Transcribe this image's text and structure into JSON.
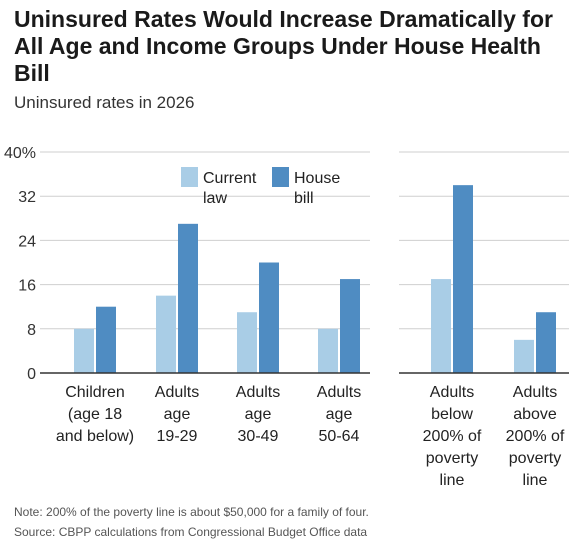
{
  "title": "Uninsured Rates Would Increase Dramatically for All Age and Income Groups Under House Health Bill",
  "subtitle": "Uninsured rates in 2026",
  "note": "Note: 200% of the poverty line is about $50,000 for a family of four.",
  "source": "Source: CBPP calculations from Congressional Budget Office data",
  "colors": {
    "current": "#a9cde6",
    "house": "#4f8cc2",
    "grid": "#cfcfcf",
    "axis": "#333333"
  },
  "chart_data": [
    {
      "type": "bar",
      "title": "",
      "ylim": [
        0,
        40
      ],
      "yticks": [
        "0",
        "8",
        "16",
        "24",
        "32",
        "40%"
      ],
      "legend": [
        {
          "label_lines": [
            "Current",
            "law"
          ]
        },
        {
          "label_lines": [
            "House",
            "bill"
          ]
        }
      ],
      "category_lines": [
        [
          "Children",
          "(age 18",
          "and below)"
        ],
        [
          "Adults",
          "age",
          "19-29"
        ],
        [
          "Adults",
          "age",
          "30-49"
        ],
        [
          "Adults",
          "age",
          "50-64"
        ]
      ],
      "series": [
        {
          "name": "Current law",
          "values": [
            8,
            14,
            11,
            8
          ]
        },
        {
          "name": "House bill",
          "values": [
            12,
            27,
            20,
            17
          ]
        }
      ]
    },
    {
      "type": "bar",
      "title": "",
      "ylim": [
        0,
        40
      ],
      "category_lines": [
        [
          "Adults",
          "below",
          "200% of",
          "poverty",
          "line"
        ],
        [
          "Adults",
          "above",
          "200% of",
          "poverty",
          "line"
        ]
      ],
      "series": [
        {
          "name": "Current law",
          "values": [
            17,
            6
          ]
        },
        {
          "name": "House bill",
          "values": [
            34,
            11
          ]
        }
      ]
    }
  ]
}
